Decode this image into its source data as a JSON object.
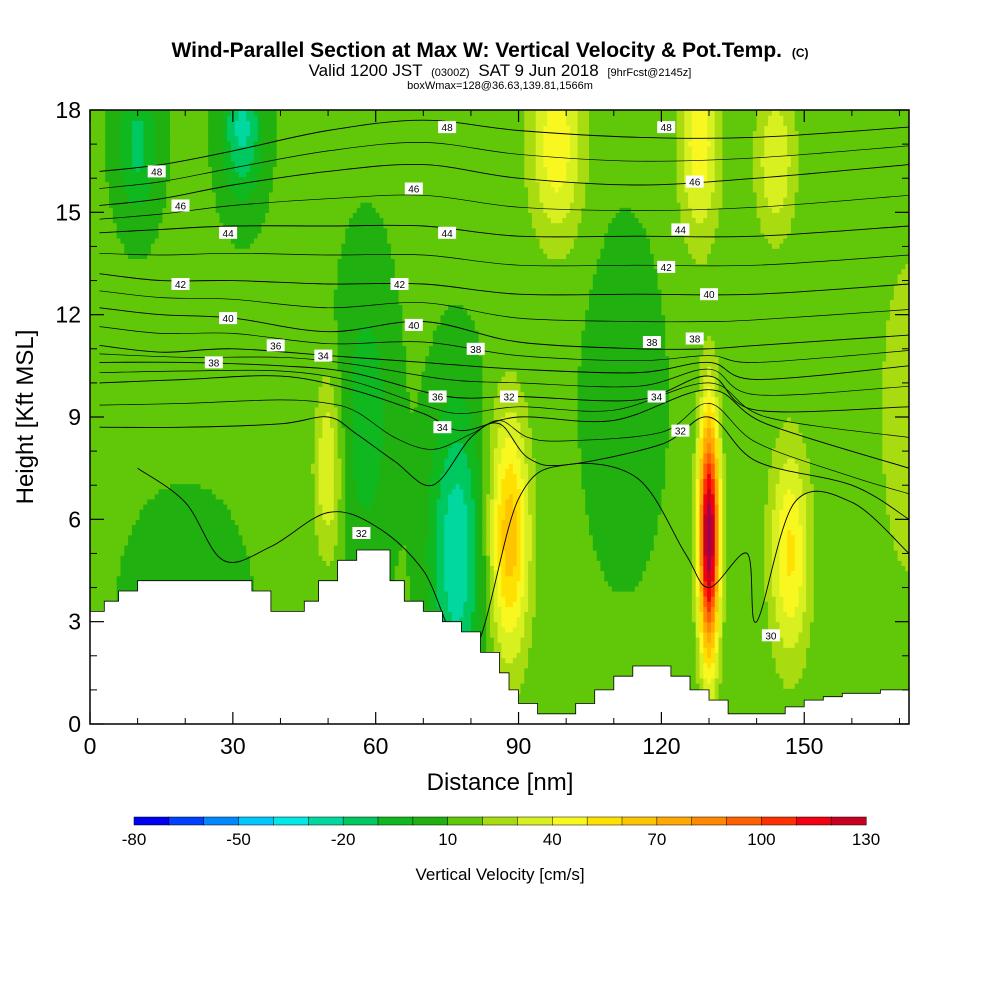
{
  "chart_data": {
    "type": "heatmap",
    "title": "Wind-Parallel Section at Max W: Vertical Velocity & Pot.Temp.",
    "title_mark": "(C)",
    "subtitle": {
      "valid": "Valid 1200 JST",
      "utc": "(0300Z)",
      "date": "SAT 9 Jun 2018",
      "fcst": "[9hrFcst@2145z]"
    },
    "info": "boxWmax=128@36.63,139.81,1566m",
    "xlabel": "Distance [nm]",
    "ylabel": "Height [Kft MSL]",
    "xlim": [
      0,
      172
    ],
    "ylim": [
      0,
      18
    ],
    "x_ticks": [
      0,
      30,
      60,
      90,
      120,
      150
    ],
    "y_ticks": [
      0,
      3,
      6,
      9,
      12,
      15,
      18
    ],
    "colorbar": {
      "label": "Vertical Velocity [cm/s]",
      "min": -80,
      "max": 130,
      "step": 10,
      "tick_labels": [
        -80,
        -50,
        -20,
        10,
        40,
        70,
        100,
        130
      ],
      "colors": [
        "#0000f0",
        "#0040ff",
        "#0088ff",
        "#00c8ff",
        "#00e8e8",
        "#00d8a0",
        "#00c860",
        "#10b820",
        "#20b010",
        "#60c808",
        "#a8dc10",
        "#d8f020",
        "#f8f820",
        "#ffe000",
        "#ffc400",
        "#ffa800",
        "#ff8800",
        "#ff6000",
        "#ff3000",
        "#f00010",
        "#c80020",
        "#a00050",
        "#8c0078",
        "#6c0098"
      ]
    },
    "terrain_kft": [
      [
        0,
        3.3
      ],
      [
        3,
        3.6
      ],
      [
        6,
        3.9
      ],
      [
        10,
        4.2
      ],
      [
        16,
        4.2
      ],
      [
        24,
        4.2
      ],
      [
        30,
        4.2
      ],
      [
        34,
        3.9
      ],
      [
        38,
        3.3
      ],
      [
        42,
        3.3
      ],
      [
        45,
        3.6
      ],
      [
        48,
        4.2
      ],
      [
        52,
        4.8
      ],
      [
        56,
        5.1
      ],
      [
        60,
        5.1
      ],
      [
        63,
        4.2
      ],
      [
        66,
        3.6
      ],
      [
        70,
        3.3
      ],
      [
        74,
        3.0
      ],
      [
        78,
        2.7
      ],
      [
        82,
        2.1
      ],
      [
        86,
        1.5
      ],
      [
        88,
        1.0
      ],
      [
        90,
        0.6
      ],
      [
        94,
        0.3
      ],
      [
        98,
        0.3
      ],
      [
        102,
        0.6
      ],
      [
        106,
        1.0
      ],
      [
        110,
        1.4
      ],
      [
        114,
        1.7
      ],
      [
        118,
        1.7
      ],
      [
        122,
        1.4
      ],
      [
        126,
        1.0
      ],
      [
        130,
        0.7
      ],
      [
        134,
        0.3
      ],
      [
        138,
        0.3
      ],
      [
        142,
        0.3
      ],
      [
        146,
        0.5
      ],
      [
        150,
        0.7
      ],
      [
        154,
        0.8
      ],
      [
        158,
        0.9
      ],
      [
        162,
        0.9
      ],
      [
        166,
        1.0
      ],
      [
        172,
        1.0
      ]
    ],
    "w_field": {
      "background": 12,
      "features": [
        {
          "x": 88,
          "z": 5.5,
          "sx": 3.0,
          "sz": 2.5,
          "w": 55
        },
        {
          "x": 130,
          "z": 5.5,
          "sx": 1.5,
          "sz": 2.5,
          "w": 128
        },
        {
          "x": 147,
          "z": 5.0,
          "sx": 3.0,
          "sz": 2.2,
          "w": 40
        },
        {
          "x": 50,
          "z": 7.5,
          "sx": 2.0,
          "sz": 1.8,
          "w": 30
        },
        {
          "x": 77,
          "z": 5.0,
          "sx": 4.0,
          "sz": 3.0,
          "w": -40
        },
        {
          "x": 58,
          "z": 9.0,
          "sx": 4.0,
          "sz": 3.0,
          "w": -18
        },
        {
          "x": 98,
          "z": 17.0,
          "sx": 4.0,
          "sz": 2.0,
          "w": 35
        },
        {
          "x": 128,
          "z": 17.0,
          "sx": 3.0,
          "sz": 2.0,
          "w": 35
        },
        {
          "x": 144,
          "z": 16.5,
          "sx": 3.0,
          "sz": 1.6,
          "w": 28
        },
        {
          "x": 32,
          "z": 17.5,
          "sx": 3.0,
          "sz": 1.5,
          "w": -35
        },
        {
          "x": 10,
          "z": 17.0,
          "sx": 3.0,
          "sz": 1.5,
          "w": -25
        },
        {
          "x": 112,
          "z": 9.5,
          "sx": 5.0,
          "sz": 3.0,
          "w": -12
        },
        {
          "x": 172,
          "z": 9.0,
          "sx": 5.0,
          "sz": 4.0,
          "w": 15
        },
        {
          "x": 20,
          "z": 3.5,
          "sx": 8.0,
          "sz": 2.0,
          "w": -10
        }
      ]
    },
    "theta_levels": [
      30,
      32,
      34,
      36,
      38,
      40,
      42,
      44,
      46,
      48
    ],
    "theta_isentropes": [
      {
        "theta": 48,
        "pts": [
          [
            2,
            16.2
          ],
          [
            15,
            16.4
          ],
          [
            30,
            16.8
          ],
          [
            50,
            17.4
          ],
          [
            70,
            17.7
          ],
          [
            90,
            17.4
          ],
          [
            115,
            17.2
          ],
          [
            140,
            17.2
          ],
          [
            172,
            17.5
          ]
        ]
      },
      {
        "theta": 46,
        "pts": [
          [
            2,
            15.2
          ],
          [
            15,
            15.4
          ],
          [
            30,
            15.8
          ],
          [
            50,
            16.2
          ],
          [
            70,
            16.4
          ],
          [
            90,
            16.0
          ],
          [
            115,
            15.8
          ],
          [
            140,
            16.0
          ],
          [
            172,
            16.4
          ]
        ]
      },
      {
        "theta": 44,
        "pts": [
          [
            2,
            14.4
          ],
          [
            15,
            14.5
          ],
          [
            30,
            14.6
          ],
          [
            50,
            14.6
          ],
          [
            70,
            14.6
          ],
          [
            90,
            14.3
          ],
          [
            115,
            14.3
          ],
          [
            140,
            14.3
          ],
          [
            172,
            14.6
          ]
        ]
      },
      {
        "theta": 42,
        "pts": [
          [
            2,
            13.2
          ],
          [
            15,
            13.0
          ],
          [
            30,
            13.0
          ],
          [
            50,
            12.9
          ],
          [
            70,
            12.9
          ],
          [
            90,
            12.6
          ],
          [
            115,
            12.6
          ],
          [
            140,
            12.6
          ],
          [
            172,
            12.9
          ]
        ]
      },
      {
        "theta": 40,
        "pts": [
          [
            2,
            12.2
          ],
          [
            15,
            12.0
          ],
          [
            30,
            11.9
          ],
          [
            50,
            11.5
          ],
          [
            70,
            11.8
          ],
          [
            90,
            11.2
          ],
          [
            115,
            11.0
          ],
          [
            130,
            11.0
          ],
          [
            140,
            11.1
          ],
          [
            172,
            11.4
          ]
        ]
      },
      {
        "theta": 38,
        "pts": [
          [
            2,
            11.1
          ],
          [
            15,
            10.9
          ],
          [
            30,
            11.0
          ],
          [
            50,
            10.8
          ],
          [
            70,
            10.6
          ],
          [
            90,
            10.4
          ],
          [
            115,
            10.3
          ],
          [
            130,
            10.6
          ],
          [
            140,
            10.1
          ],
          [
            172,
            10.5
          ]
        ]
      },
      {
        "theta": 36,
        "pts": [
          [
            2,
            10.6
          ],
          [
            20,
            10.6
          ],
          [
            40,
            10.5
          ],
          [
            55,
            10.3
          ],
          [
            75,
            9.6
          ],
          [
            90,
            9.6
          ],
          [
            115,
            9.5
          ],
          [
            130,
            10.2
          ],
          [
            140,
            9.2
          ],
          [
            172,
            9.3
          ]
        ]
      },
      {
        "theta": 34,
        "pts": [
          [
            2,
            10.0
          ],
          [
            20,
            10.1
          ],
          [
            40,
            10.2
          ],
          [
            55,
            9.8
          ],
          [
            70,
            9.1
          ],
          [
            78,
            8.6
          ],
          [
            90,
            9.0
          ],
          [
            110,
            8.9
          ],
          [
            130,
            9.8
          ],
          [
            142,
            8.8
          ],
          [
            172,
            7.5
          ]
        ]
      },
      {
        "theta": 32,
        "pts": [
          [
            2,
            8.7
          ],
          [
            20,
            8.7
          ],
          [
            40,
            8.8
          ],
          [
            50,
            9.0
          ],
          [
            56,
            8.5
          ],
          [
            64,
            7.7
          ],
          [
            72,
            7.0
          ],
          [
            80,
            8.4
          ],
          [
            86,
            8.8
          ],
          [
            92,
            7.8
          ],
          [
            100,
            7.6
          ],
          [
            120,
            8.2
          ],
          [
            130,
            9.0
          ],
          [
            140,
            7.7
          ],
          [
            160,
            7.0
          ],
          [
            172,
            6.0
          ]
        ]
      },
      {
        "theta": 30,
        "pts": [
          [
            10,
            7.5
          ],
          [
            20,
            6.5
          ],
          [
            28,
            4.8
          ],
          [
            38,
            5.2
          ],
          [
            50,
            6.2
          ],
          [
            60,
            5.8
          ],
          [
            70,
            4.5
          ],
          [
            80,
            2.0
          ],
          [
            90,
            6.6
          ],
          [
            100,
            7.6
          ],
          [
            115,
            7.2
          ],
          [
            125,
            5.0
          ],
          [
            130,
            4.0
          ],
          [
            138,
            5.0
          ],
          [
            140,
            3.0
          ],
          [
            148,
            6.5
          ],
          [
            160,
            6.5
          ],
          [
            172,
            5.0
          ]
        ]
      }
    ],
    "contour_labels": [
      {
        "text": "48",
        "x": 14,
        "z": 16.2
      },
      {
        "text": "46",
        "x": 19,
        "z": 15.2
      },
      {
        "text": "44",
        "x": 29,
        "z": 14.4
      },
      {
        "text": "42",
        "x": 19,
        "z": 12.9
      },
      {
        "text": "40",
        "x": 29,
        "z": 11.9
      },
      {
        "text": "38",
        "x": 26,
        "z": 10.6
      },
      {
        "text": "36",
        "x": 39,
        "z": 11.1
      },
      {
        "text": "34",
        "x": 49,
        "z": 10.8
      },
      {
        "text": "48",
        "x": 75,
        "z": 17.5
      },
      {
        "text": "46",
        "x": 68,
        "z": 15.7
      },
      {
        "text": "44",
        "x": 75,
        "z": 14.4
      },
      {
        "text": "42",
        "x": 65,
        "z": 12.9
      },
      {
        "text": "40",
        "x": 68,
        "z": 11.7
      },
      {
        "text": "38",
        "x": 81,
        "z": 11.0
      },
      {
        "text": "36",
        "x": 73,
        "z": 9.6
      },
      {
        "text": "34",
        "x": 74,
        "z": 8.7
      },
      {
        "text": "32",
        "x": 88,
        "z": 9.6
      },
      {
        "text": "32",
        "x": 57,
        "z": 5.6
      },
      {
        "text": "48",
        "x": 121,
        "z": 17.5
      },
      {
        "text": "46",
        "x": 127,
        "z": 15.9
      },
      {
        "text": "44",
        "x": 124,
        "z": 14.5
      },
      {
        "text": "42",
        "x": 121,
        "z": 13.4
      },
      {
        "text": "40",
        "x": 130,
        "z": 12.6
      },
      {
        "text": "38",
        "x": 118,
        "z": 11.2
      },
      {
        "text": "38",
        "x": 127,
        "z": 11.3
      },
      {
        "text": "34",
        "x": 119,
        "z": 9.6
      },
      {
        "text": "32",
        "x": 124,
        "z": 8.6
      },
      {
        "text": "30",
        "x": 143,
        "z": 2.6
      }
    ]
  }
}
